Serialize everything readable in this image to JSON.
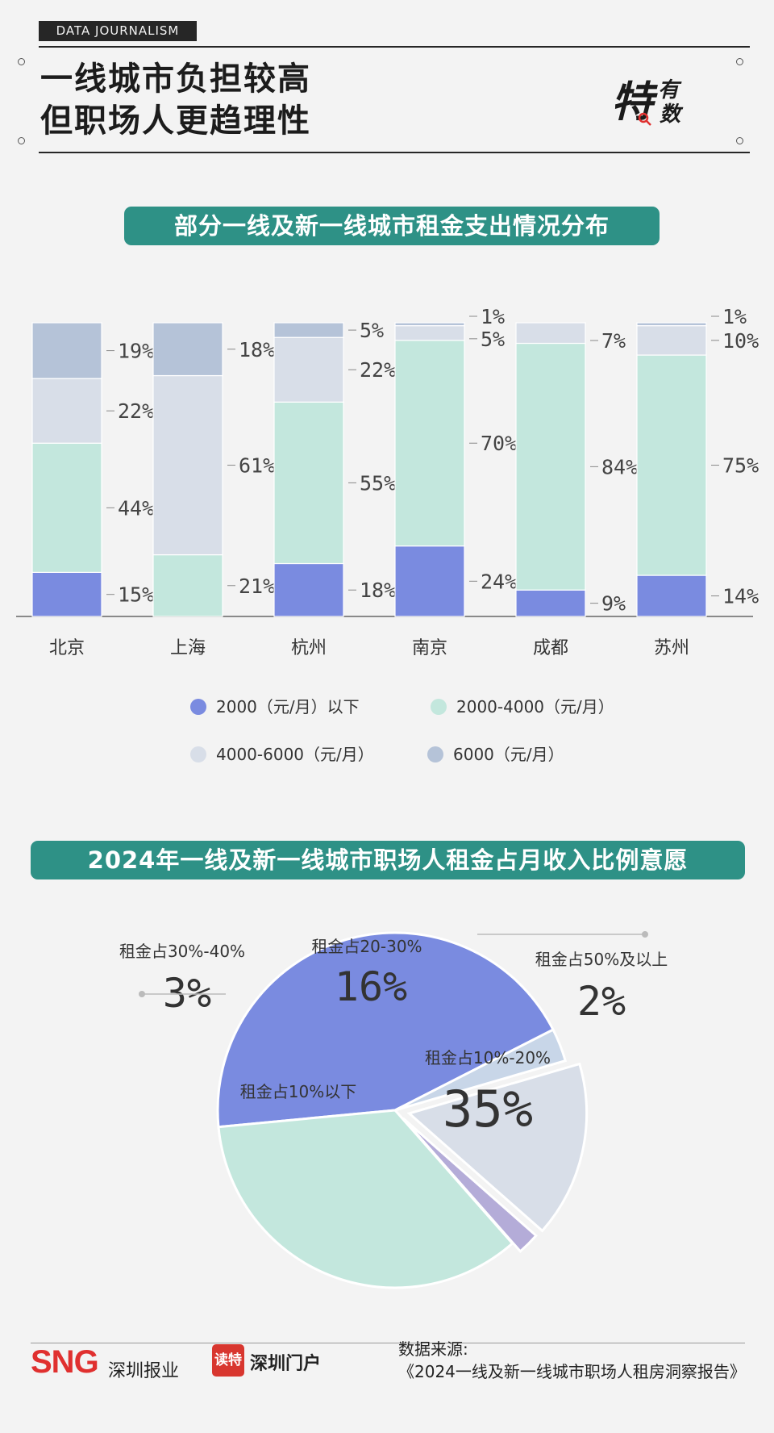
{
  "header": {
    "tag": "DATA JOURNALISM",
    "headline_line1": "一线城市负担较高",
    "headline_line2": "但职场人更趋理性",
    "logo_big": "特",
    "logo_small1": "有",
    "logo_small2": "数"
  },
  "chart_data": [
    {
      "type": "bar",
      "stacked": true,
      "title": "部分一线及新一线城市租金支出情况分布",
      "categories": [
        "北京",
        "上海",
        "杭州",
        "南京",
        "成都",
        "苏州"
      ],
      "series": [
        {
          "name": "2000（元/月）以下",
          "color": "#7a8be0",
          "values": [
            15,
            0,
            18,
            24,
            9,
            14
          ]
        },
        {
          "name": "2000-4000（元/月）",
          "color": "#c3e7dd",
          "values": [
            44,
            21,
            55,
            70,
            84,
            75
          ]
        },
        {
          "name": "4000-6000（元/月）",
          "color": "#d8dee8",
          "values": [
            22,
            61,
            22,
            5,
            7,
            10
          ]
        },
        {
          "name": "6000（元/月）",
          "color": "#b5c3d8",
          "values": [
            19,
            18,
            5,
            1,
            0,
            1
          ]
        }
      ],
      "labels": [
        [
          "15%",
          "44%",
          "22%",
          "19%"
        ],
        [
          "",
          "21%",
          "61%",
          "18%"
        ],
        [
          "18%",
          "55%",
          "22%",
          "5%"
        ],
        [
          "24%",
          "70%",
          "5%",
          "1%"
        ],
        [
          "9%",
          "84%",
          "7%",
          ""
        ],
        [
          "14%",
          "75%",
          "10%",
          "1%"
        ]
      ],
      "legend": "bottom"
    },
    {
      "type": "pie",
      "title": "2024年一线及新一线城市职场人租金占月收入比例意愿",
      "slices": [
        {
          "label": "租金占10%以下",
          "value": 44,
          "display": "44%",
          "color": "#7a8be0"
        },
        {
          "label": "租金占30%-40%",
          "value": 3,
          "display": "3%",
          "color": "#c8d6e8"
        },
        {
          "label": "租金占20-30%",
          "value": 16,
          "display": "16%",
          "color": "#d8dee8"
        },
        {
          "label": "租金占50%及以上",
          "value": 2,
          "display": "2%",
          "color": "#b4acd8"
        },
        {
          "label": "租金占10%-20%",
          "value": 35,
          "display": "35%",
          "color": "#c3e7dd"
        }
      ]
    }
  ],
  "footer": {
    "sng": "SNG",
    "sng_text": "深圳报业",
    "dute": "读特",
    "szmh": "深圳门户",
    "source_label": "数据来源:",
    "source_text": "《2024一线及新一线城市职场人租房洞察报告》"
  }
}
